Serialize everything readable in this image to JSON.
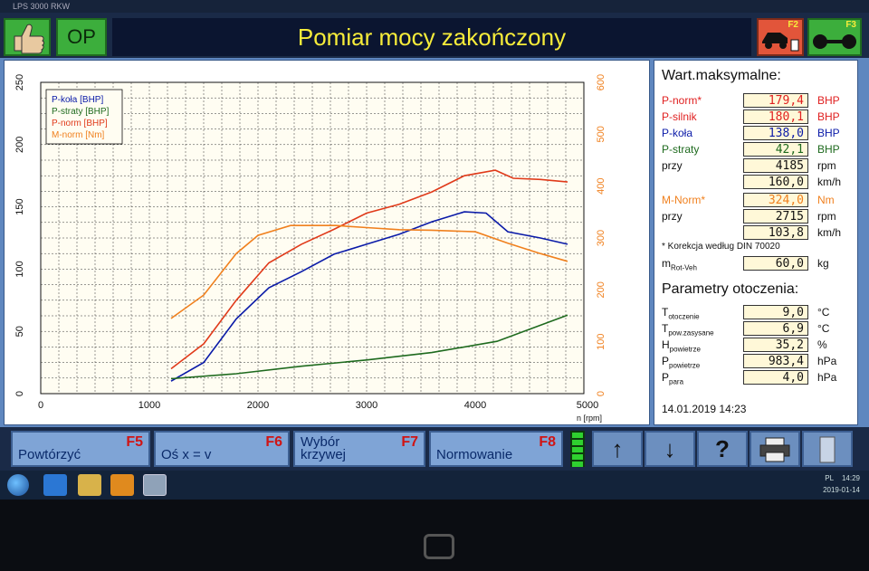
{
  "window": {
    "title": "LPS 3000 RKW"
  },
  "topbar": {
    "ok_label": "OP",
    "status_title": "Pomiar mocy zakończony",
    "f2_key": "F2",
    "f3_key": "F3"
  },
  "chart_data": {
    "type": "line",
    "xlabel": "n [rpm]",
    "xlim": [
      0,
      5000
    ],
    "x_ticks": [
      "0",
      "1000",
      "2000",
      "3000",
      "4000",
      "5000"
    ],
    "ylim_left": [
      0,
      250
    ],
    "y_ticks_left": [
      "0",
      "50",
      "100",
      "150",
      "200",
      "250"
    ],
    "ylim_right": [
      0,
      600
    ],
    "y_ticks_right": [
      "0",
      "100",
      "200",
      "300",
      "400",
      "500",
      "600"
    ],
    "grid": true,
    "legend_position": "top-left",
    "series": [
      {
        "name": "P-koła [BHP]",
        "color": "#0a1aa8",
        "axis": "left",
        "x": [
          1200,
          1500,
          1800,
          2100,
          2400,
          2700,
          3000,
          3300,
          3600,
          3900,
          4100,
          4300,
          4600,
          4850
        ],
        "y": [
          10,
          25,
          60,
          85,
          98,
          112,
          120,
          128,
          138,
          146,
          145,
          130,
          125,
          120
        ]
      },
      {
        "name": "P-straty [BHP]",
        "color": "#1e6a1e",
        "axis": "left",
        "x": [
          1200,
          1800,
          2400,
          3000,
          3600,
          4200,
          4850
        ],
        "y": [
          12,
          16,
          22,
          27,
          33,
          42,
          63
        ]
      },
      {
        "name": "P-norm [BHP]",
        "color": "#e03a1a",
        "axis": "left",
        "x": [
          1200,
          1500,
          1800,
          2100,
          2400,
          2700,
          3000,
          3300,
          3600,
          3900,
          4185,
          4350,
          4600,
          4850
        ],
        "y": [
          20,
          40,
          75,
          105,
          120,
          132,
          145,
          152,
          162,
          175,
          179.4,
          173,
          172,
          170
        ]
      },
      {
        "name": "M-norm [Nm]",
        "color": "#f0801e",
        "axis": "right",
        "x": [
          1200,
          1500,
          1800,
          2000,
          2300,
          2715,
          3000,
          3300,
          3600,
          4000,
          4300,
          4600,
          4850
        ],
        "y": [
          145,
          190,
          270,
          305,
          324,
          324,
          320,
          316,
          315,
          312,
          290,
          270,
          255
        ]
      }
    ]
  },
  "maxvals": {
    "heading": "Wart.maksymalne:",
    "rows": [
      {
        "label": "P-norm*",
        "value": "179,4",
        "unit": "BHP",
        "color": "#e02020"
      },
      {
        "label": "P-silnik",
        "value": "180,1",
        "unit": "BHP",
        "color": "#e02020"
      },
      {
        "label": "P-koła",
        "value": "138,0",
        "unit": "BHP",
        "color": "#0a1aa8"
      },
      {
        "label": "P-straty",
        "value": "42,1",
        "unit": "BHP",
        "color": "#1e6a1e"
      },
      {
        "label": "przy",
        "value": "4185",
        "unit": "rpm",
        "color": "#111111"
      },
      {
        "label": "",
        "value": "160,0",
        "unit": "km/h",
        "color": "#111111"
      },
      {
        "label": "M-Norm*",
        "value": "324,0",
        "unit": "Nm",
        "color": "#f0801e"
      },
      {
        "label": "przy",
        "value": "2715",
        "unit": "rpm",
        "color": "#111111"
      },
      {
        "label": "",
        "value": "103,8",
        "unit": "km/h",
        "color": "#111111"
      }
    ],
    "note": "* Korekcja według DIN 70020",
    "mass_label": "m",
    "mass_sub": "Rot-Veh",
    "mass_value": "60,0",
    "mass_unit": "kg"
  },
  "ambient": {
    "heading": "Parametry otoczenia:",
    "rows": [
      {
        "sym": "T",
        "sub": "otoczenie",
        "value": "9,0",
        "unit": "°C"
      },
      {
        "sym": "T",
        "sub": "pow.zasysane",
        "value": "6,9",
        "unit": "°C"
      },
      {
        "sym": "H",
        "sub": "powietrze",
        "value": "35,2",
        "unit": "%"
      },
      {
        "sym": "P",
        "sub": "powietrze",
        "value": "983,4",
        "unit": "hPa"
      },
      {
        "sym": "P",
        "sub": "para",
        "value": "4,0",
        "unit": "hPa"
      }
    ],
    "timestamp": "14.01.2019 14:23"
  },
  "fbar": {
    "buttons": [
      {
        "key": "F5",
        "label": "Powtórzyć"
      },
      {
        "key": "F6",
        "label": "Oś x = v"
      },
      {
        "key": "F7",
        "label": "Wybór\nkrzywej"
      },
      {
        "key": "F8",
        "label": "Normowanie"
      }
    ],
    "up_glyph": "↑",
    "down_glyph": "↓",
    "help_glyph": "?"
  },
  "taskbar": {
    "lang": "PL",
    "time": "14:29",
    "date": "2019-01-14"
  }
}
